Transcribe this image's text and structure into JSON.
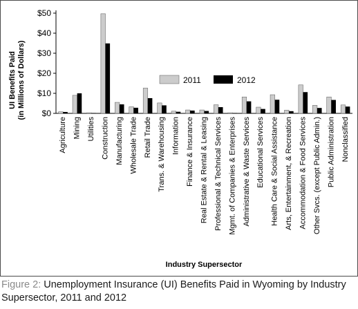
{
  "caption": {
    "figure_label": "Figure 2:",
    "text": "Unemployment Insurance (UI) Benefits Paid in Wyoming by Industry Supersector, 2011 and 2012"
  },
  "chart_data": {
    "type": "bar",
    "title": "",
    "xlabel": "Industry Supersector",
    "ylabel_line1": "UI Benefits Paid",
    "ylabel_line2": "(in Millions of Dollars)",
    "ylim": [
      0,
      50
    ],
    "yticks": [
      0,
      10,
      20,
      30,
      40,
      50
    ],
    "ytick_labels": [
      "$0",
      "$10",
      "$20",
      "$30",
      "$40",
      "$50"
    ],
    "grid": false,
    "legend_position": "center-right",
    "categories": [
      "Agriculture",
      "Mining",
      "Utilities",
      "Construction",
      "Manufacturing",
      "Wholesale Trade",
      "Retail Trade",
      "Trans. & Warehousing",
      "Information",
      "Finance & Insurance",
      "Real Estate & Rental & Leasing",
      "Professional & Technical Services",
      "Mgmt. of Companies & Enterprises",
      "Administrative & Waste Services",
      "Educational Services",
      "Health Care & Social Assistance",
      "Arts, Entertainment, & Recreation",
      "Accommodation & Food Services",
      "Other Svcs. (except Public Admin.)",
      "Public Administration",
      "Nonclassified"
    ],
    "series": [
      {
        "name": "2011",
        "color": "#cccccc",
        "values": [
          0.8,
          9.0,
          0.3,
          49.7,
          5.5,
          3.3,
          12.6,
          5.2,
          1.1,
          1.7,
          1.7,
          4.3,
          0.3,
          8.2,
          3.1,
          9.3,
          1.6,
          14.2,
          4.0,
          8.2,
          4.2
        ]
      },
      {
        "name": "2012",
        "color": "#000000",
        "values": [
          0.7,
          10.0,
          0.2,
          34.9,
          4.5,
          2.8,
          7.6,
          4.0,
          0.8,
          1.4,
          1.2,
          3.1,
          0.2,
          6.0,
          2.2,
          6.8,
          1.1,
          10.6,
          2.7,
          6.7,
          3.4
        ]
      }
    ]
  }
}
